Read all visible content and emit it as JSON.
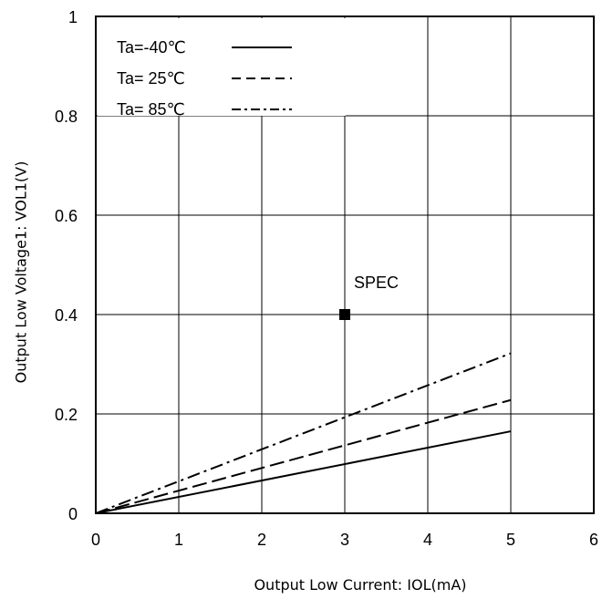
{
  "chart_data": {
    "type": "line",
    "xlabel": "Output Low Current: IOL(mA)",
    "ylabel": "Output Low Voltage1: VOL1(V)",
    "xlim": [
      0,
      6
    ],
    "ylim": [
      0,
      1
    ],
    "x_ticks": [
      "0",
      "1",
      "2",
      "3",
      "4",
      "5",
      "6"
    ],
    "y_ticks": [
      "0",
      "0.2",
      "0.4",
      "0.6",
      "0.8",
      "1"
    ],
    "grid": true,
    "legend_position": "top-left",
    "series": [
      {
        "name": "Ta=-40℃",
        "style": "solid",
        "x": [
          0,
          5
        ],
        "y": [
          0,
          0.165
        ]
      },
      {
        "name": "Ta= 25℃",
        "style": "dashed",
        "x": [
          0,
          5
        ],
        "y": [
          0,
          0.228
        ]
      },
      {
        "name": "Ta= 85℃",
        "style": "dash-dot",
        "x": [
          0,
          5
        ],
        "y": [
          0,
          0.322
        ]
      }
    ],
    "annotations": [
      {
        "label": "SPEC",
        "x": 3,
        "y": 0.4,
        "marker": "square"
      }
    ]
  }
}
